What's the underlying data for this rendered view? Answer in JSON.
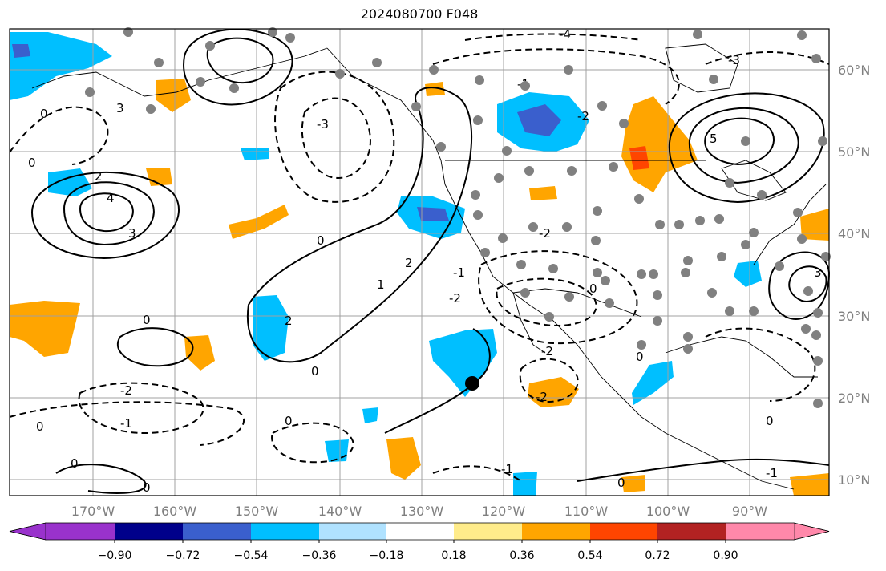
{
  "title": "2024080700 F048",
  "map": {
    "lon_labels": [
      "170°W",
      "160°W",
      "150°W",
      "140°W",
      "130°W",
      "120°W",
      "110°W",
      "100°W",
      "90°W"
    ],
    "lat_labels": [
      "60°N",
      "50°N",
      "40°N",
      "30°N",
      "20°N",
      "10°N"
    ],
    "contour_labels": [
      "-4",
      "-3",
      "-2",
      "-1",
      "0",
      "1",
      "2",
      "3",
      "4",
      "5"
    ],
    "colors": {
      "contour": "#000000",
      "grid": "#a0a0a0",
      "station_dot": "#808080",
      "marker": "#000000",
      "coast": "#000000"
    },
    "marker": {
      "lon": "-123",
      "lat": "22"
    }
  },
  "colorbar": {
    "ticks": [
      "−0.90",
      "−0.72",
      "−0.54",
      "−0.36",
      "−0.18",
      "0.18",
      "0.36",
      "0.54",
      "0.72",
      "0.90"
    ],
    "colors": [
      "#9932cc",
      "#00008b",
      "#3a5fcd",
      "#00bfff",
      "#b0e2ff",
      "#ffffff",
      "#ffec8b",
      "#ffa500",
      "#ff4500",
      "#b22222",
      "#ff88aa"
    ],
    "extend": "both"
  }
}
